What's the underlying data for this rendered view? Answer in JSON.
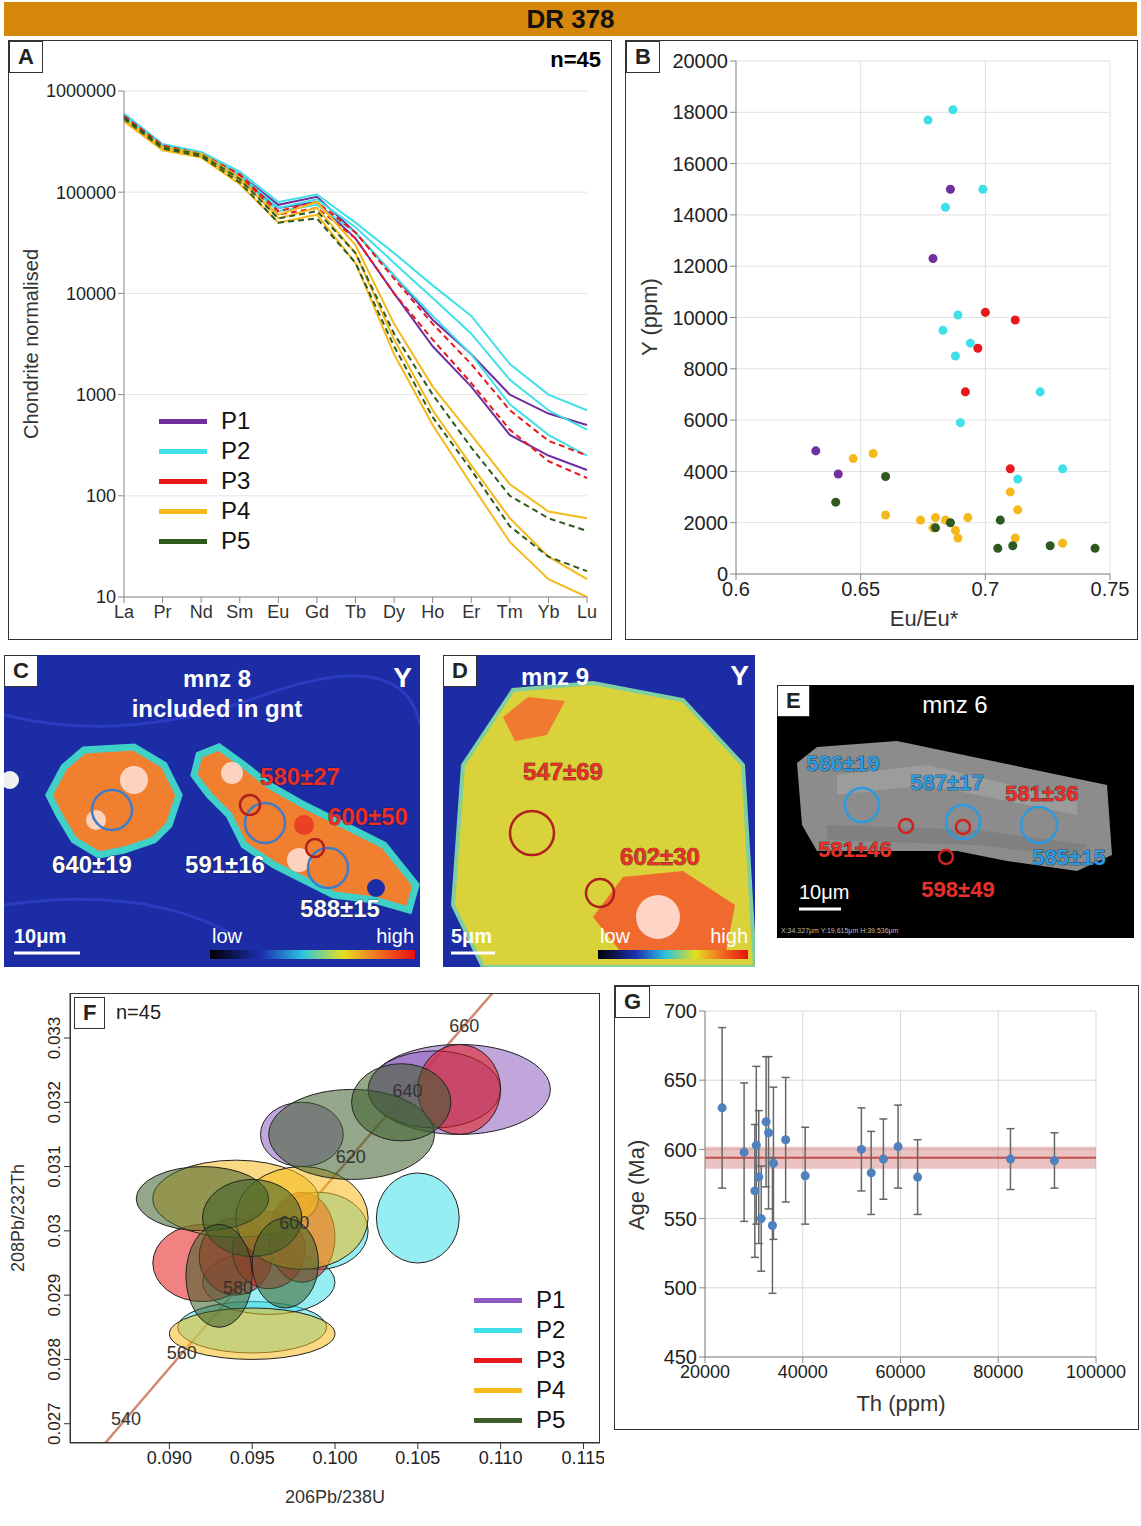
{
  "title": "DR 378",
  "chart_data": [
    {
      "panel": "A",
      "type": "line",
      "annotation": "n=45",
      "y_label": "Chondrite normalised",
      "categories": [
        "La",
        "Pr",
        "Nd",
        "Sm",
        "Eu",
        "Gd",
        "Tb",
        "Dy",
        "Ho",
        "Er",
        "Tm",
        "Yb",
        "Lu"
      ],
      "log": "y",
      "ylim": [
        10,
        1000000
      ],
      "yticks": [
        10,
        100,
        1000,
        10000,
        100000,
        1000000
      ],
      "grid": true,
      "legend": "lower left",
      "series": [
        {
          "name": "P1",
          "color": "#7030a0",
          "line_style": "solid",
          "lines": [
            [
              580000,
              290000,
              240000,
              150000,
              75000,
              90000,
              40000,
              15000,
              5500,
              2500,
              1000,
              650,
              500
            ],
            [
              560000,
              280000,
              230000,
              140000,
              70000,
              80000,
              35000,
              10000,
              3000,
              1200,
              400,
              250,
              180
            ]
          ]
        },
        {
          "name": "P2",
          "color": "#3fe0e8",
          "line_style": "solid",
          "lines": [
            [
              600000,
              300000,
              250000,
              160000,
              80000,
              95000,
              50000,
              25000,
              12000,
              6000,
              2000,
              1000,
              700
            ],
            [
              570000,
              285000,
              240000,
              150000,
              70000,
              85000,
              45000,
              20000,
              9000,
              4000,
              1400,
              700,
              450
            ],
            [
              550000,
              275000,
              230000,
              140000,
              65000,
              75000,
              40000,
              15000,
              6000,
              2500,
              800,
              400,
              250
            ]
          ]
        },
        {
          "name": "P3",
          "color": "#e8191b",
          "line_style": "dashed",
          "lines": [
            [
              570000,
              290000,
              240000,
              150000,
              65000,
              80000,
              40000,
              14000,
              5000,
              2000,
              700,
              350,
              250
            ],
            [
              560000,
              280000,
              235000,
              145000,
              60000,
              70000,
              35000,
              10000,
              3500,
              1300,
              450,
              220,
              150
            ]
          ]
        },
        {
          "name": "P4",
          "color": "#f5b91c",
          "line_style": "solid",
          "lines": [
            [
              520000,
              270000,
              230000,
              130000,
              60000,
              80000,
              30000,
              5000,
              1200,
              400,
              130,
              70,
              60
            ],
            [
              540000,
              280000,
              240000,
              140000,
              55000,
              70000,
              25000,
              3500,
              700,
              200,
              60,
              25,
              15
            ],
            [
              500000,
              260000,
              220000,
              120000,
              50000,
              60000,
              20000,
              2500,
              500,
              130,
              35,
              15,
              10
            ]
          ]
        },
        {
          "name": "P5",
          "color": "#2f5a1f",
          "line_style": "dashed",
          "lines": [
            [
              550000,
              280000,
              235000,
              135000,
              55000,
              65000,
              25000,
              4000,
              1000,
              300,
              100,
              60,
              45
            ],
            [
              530000,
              270000,
              225000,
              125000,
              50000,
              55000,
              20000,
              3000,
              600,
              180,
              50,
              25,
              18
            ]
          ]
        }
      ]
    },
    {
      "panel": "B",
      "type": "scatter",
      "x_label": "Eu/Eu*",
      "y_label": "Y (ppm)",
      "xlim": [
        0.6,
        0.75
      ],
      "xticks": [
        0.6,
        0.65,
        0.7,
        0.75
      ],
      "ylim": [
        0,
        20000
      ],
      "yticks": [
        0,
        2000,
        4000,
        6000,
        8000,
        10000,
        12000,
        14000,
        16000,
        18000,
        20000
      ],
      "grid": true,
      "series": [
        {
          "color": "#7030a0",
          "x": [
            0.686,
            0.679,
            0.632,
            0.641
          ],
          "y": [
            15000,
            12300,
            4800,
            3900
          ]
        },
        {
          "color": "#3fe0e8",
          "x": [
            0.677,
            0.687,
            0.699,
            0.684,
            0.689,
            0.683,
            0.694,
            0.688,
            0.722,
            0.69,
            0.713,
            0.731
          ],
          "y": [
            17700,
            18100,
            15000,
            14300,
            10100,
            9500,
            9000,
            8500,
            7100,
            5900,
            3700,
            4100
          ]
        },
        {
          "color": "#e8191b",
          "x": [
            0.7,
            0.712,
            0.697,
            0.692,
            0.71
          ],
          "y": [
            10200,
            9900,
            8800,
            7100,
            4100
          ]
        },
        {
          "color": "#f5b91c",
          "x": [
            0.647,
            0.655,
            0.66,
            0.674,
            0.68,
            0.679,
            0.684,
            0.688,
            0.689,
            0.693,
            0.71,
            0.713,
            0.712,
            0.731
          ],
          "y": [
            4500,
            4700,
            2300,
            2100,
            2200,
            1800,
            2100,
            1700,
            1400,
            2200,
            3200,
            2500,
            1400,
            1200
          ]
        },
        {
          "color": "#2f5a1f",
          "x": [
            0.64,
            0.66,
            0.68,
            0.686,
            0.706,
            0.705,
            0.711,
            0.726,
            0.744
          ],
          "y": [
            2800,
            3800,
            1800,
            2000,
            2100,
            1000,
            1100,
            1100,
            1000
          ]
        }
      ]
    },
    {
      "panel": "F",
      "type": "scatter",
      "annotation": "n=45",
      "x_label": "206Pb/238U",
      "y_label": "208Pb/232Th",
      "xlim": [
        0.084,
        0.116
      ],
      "xticks": [
        {
          "value": 0.09,
          "label": "0.090"
        },
        0.095,
        {
          "value": 0.1,
          "label": "0.100"
        },
        0.105,
        {
          "value": 0.11,
          "label": "0.110"
        },
        0.115
      ],
      "ylim": [
        0.0267,
        0.0337
      ],
      "yticks": [
        0.027,
        0.028,
        0.029,
        0.03,
        0.031,
        0.032,
        0.033
      ],
      "legend": "lower right",
      "concordia": {
        "color": "#d08a70",
        "x": [
          0.08401,
          0.08738,
          0.090755,
          0.094145,
          0.097544,
          0.100955,
          0.104376,
          0.107808,
          0.111249
        ],
        "y": [
          0.026061,
          0.027077,
          0.028093,
          0.029112,
          0.03013,
          0.03115,
          0.032171,
          0.033193,
          0.034215
        ],
        "labels": [
          null,
          540,
          560,
          580,
          600,
          620,
          640,
          660,
          null
        ]
      },
      "series": [
        {
          "name": "P1",
          "color": "#8e5cc0",
          "ellipses": [
            {
              "x": 0.1075,
              "y": 0.0322,
              "sx": 0.0055,
              "sy": 0.0007
            },
            {
              "x": 0.106,
              "y": 0.0322,
              "sx": 0.004,
              "sy": 0.0006
            },
            {
              "x": 0.098,
              "y": 0.0315,
              "sx": 0.0025,
              "sy": 0.0005
            }
          ]
        },
        {
          "name": "P2",
          "color": "#3fe0e8",
          "ellipses": [
            {
              "x": 0.105,
              "y": 0.0302,
              "sx": 0.0025,
              "sy": 0.0007
            },
            {
              "x": 0.095,
              "y": 0.0285,
              "sx": 0.0045,
              "sy": 0.0004
            },
            {
              "x": 0.096,
              "y": 0.0292,
              "sx": 0.004,
              "sy": 0.0005
            },
            {
              "x": 0.099,
              "y": 0.03,
              "sx": 0.003,
              "sy": 0.0006
            }
          ]
        },
        {
          "name": "P3",
          "color": "#e8191b",
          "ellipses": [
            {
              "x": 0.1075,
              "y": 0.0322,
              "sx": 0.0025,
              "sy": 0.0007
            },
            {
              "x": 0.092,
              "y": 0.0295,
              "sx": 0.003,
              "sy": 0.0006
            },
            {
              "x": 0.094,
              "y": 0.0296,
              "sx": 0.0022,
              "sy": 0.0006
            },
            {
              "x": 0.096,
              "y": 0.0297,
              "sx": 0.0022,
              "sy": 0.0006
            },
            {
              "x": 0.098,
              "y": 0.0299,
              "sx": 0.002,
              "sy": 0.0007
            }
          ]
        },
        {
          "name": "P4",
          "color": "#f5b91c",
          "ellipses": [
            {
              "x": 0.095,
              "y": 0.0284,
              "sx": 0.005,
              "sy": 0.0004
            },
            {
              "x": 0.094,
              "y": 0.0305,
              "sx": 0.005,
              "sy": 0.0006
            },
            {
              "x": 0.098,
              "y": 0.0302,
              "sx": 0.004,
              "sy": 0.0008
            }
          ]
        },
        {
          "name": "P5",
          "color": "#3d5e2a",
          "ellipses": [
            {
              "x": 0.092,
              "y": 0.0305,
              "sx": 0.004,
              "sy": 0.0005
            },
            {
              "x": 0.095,
              "y": 0.0302,
              "sx": 0.003,
              "sy": 0.0006
            },
            {
              "x": 0.101,
              "y": 0.0315,
              "sx": 0.005,
              "sy": 0.0007
            },
            {
              "x": 0.104,
              "y": 0.032,
              "sx": 0.003,
              "sy": 0.0006
            },
            {
              "x": 0.097,
              "y": 0.0295,
              "sx": 0.002,
              "sy": 0.0007
            },
            {
              "x": 0.093,
              "y": 0.0293,
              "sx": 0.002,
              "sy": 0.0008
            }
          ]
        }
      ]
    },
    {
      "panel": "G",
      "type": "scatter",
      "x_label": "Th (ppm)",
      "y_label": "Age (Ma)",
      "xlim": [
        20000,
        100000
      ],
      "xticks": [
        20000,
        40000,
        60000,
        80000,
        100000
      ],
      "ylim": [
        450,
        700
      ],
      "yticks": [
        450,
        500,
        550,
        600,
        650,
        700
      ],
      "grid": true,
      "color": "#4f81bd",
      "x": [
        23500,
        28000,
        30200,
        30500,
        31000,
        31500,
        32500,
        33000,
        33800,
        34000,
        36500,
        40500,
        52000,
        54000,
        56500,
        59500,
        63500,
        82500,
        91500
      ],
      "y": [
        630,
        598,
        570,
        603,
        580,
        550,
        620,
        612,
        545,
        590,
        607,
        581,
        600,
        583,
        593,
        602,
        580,
        593,
        592
      ],
      "error": [
        58,
        50,
        48,
        57,
        48,
        38,
        47,
        55,
        49,
        55,
        45,
        35,
        30,
        30,
        29,
        30,
        27,
        22,
        20
      ],
      "mean": 594,
      "mean_band": [
        586,
        602
      ],
      "mean_color": "#c0504d"
    }
  ],
  "images": [
    {
      "panel": "C",
      "title": "mnz 8",
      "subtitle": "included in gnt",
      "element": "Y",
      "scale_bar": "10μm",
      "colorbar": [
        "low",
        "high"
      ],
      "spots": [
        {
          "label": "640±19",
          "color": "#ffffff",
          "circle": "#3d7cc9"
        },
        {
          "label": "591±16",
          "color": "#ffffff",
          "circle": "#3d7cc9"
        },
        {
          "label": "588±15",
          "color": "#ffffff",
          "circle": "#3d7cc9"
        },
        {
          "label": "580±27",
          "color": "#e8302a",
          "circle": "#b02020"
        },
        {
          "label": "600±50",
          "color": "#e8302a",
          "circle": "#b02020"
        }
      ]
    },
    {
      "panel": "D",
      "title": "mnz 9",
      "element": "Y",
      "scale_bar": "5μm",
      "colorbar": [
        "low",
        "high"
      ],
      "spots": [
        {
          "label": "547±69",
          "color": "#e8302a",
          "circle": "#b02020"
        },
        {
          "label": "602±30",
          "color": "#e8302a",
          "circle": "#b02020"
        }
      ]
    },
    {
      "panel": "E",
      "title": "mnz 6",
      "scale_bar": "10μm",
      "footer": "X:34.327μm   Y:19.615μm   H:39.536μm",
      "spots": [
        {
          "label": "586±19",
          "color": "#2a9be0",
          "circle": "#2a9be0"
        },
        {
          "label": "587±17",
          "color": "#2a9be0",
          "circle": "#2a9be0"
        },
        {
          "label": "585±15",
          "color": "#2a9be0",
          "circle": "#2a9be0"
        },
        {
          "label": "581±46",
          "color": "#e8302a",
          "circle": "#d02020"
        },
        {
          "label": "581±36",
          "color": "#e8302a",
          "circle": "#d02020"
        },
        {
          "label": "598±49",
          "color": "#e8302a",
          "circle": "#d02020"
        }
      ]
    }
  ]
}
